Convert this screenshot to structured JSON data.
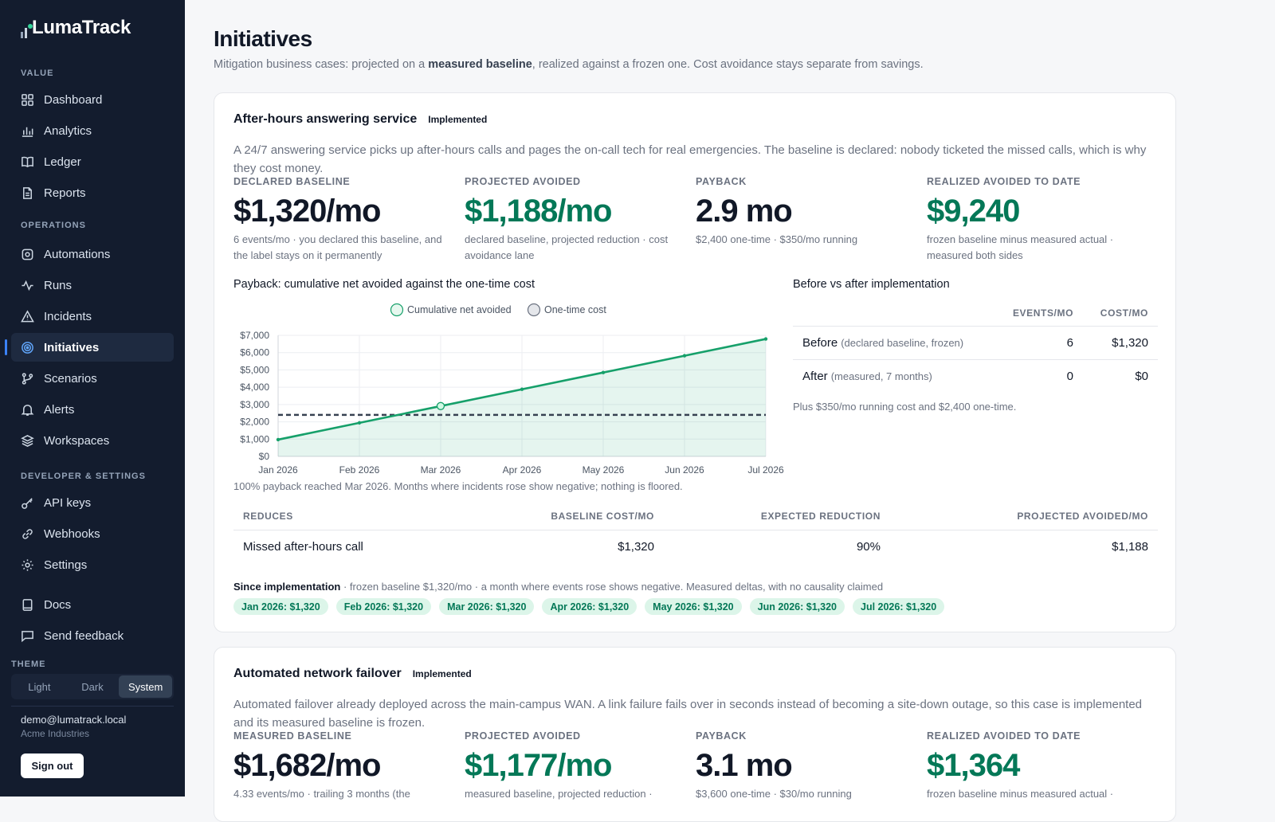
{
  "app": {
    "name": "LumaTrack"
  },
  "sidebar": {
    "sections": {
      "value": "VALUE",
      "operations": "OPERATIONS",
      "developer": "DEVELOPER & SETTINGS"
    },
    "items": {
      "dashboard": "Dashboard",
      "analytics": "Analytics",
      "ledger": "Ledger",
      "reports": "Reports",
      "automations": "Automations",
      "runs": "Runs",
      "incidents": "Incidents",
      "initiatives": "Initiatives",
      "scenarios": "Scenarios",
      "alerts": "Alerts",
      "workspaces": "Workspaces",
      "api_keys": "API keys",
      "webhooks": "Webhooks",
      "settings": "Settings",
      "docs": "Docs",
      "feedback": "Send feedback"
    },
    "active": "initiatives",
    "theme": {
      "label": "THEME",
      "options": [
        "Light",
        "Dark",
        "System"
      ],
      "selected": "System"
    },
    "user": {
      "email": "demo@lumatrack.local",
      "org": "Acme Industries"
    },
    "signout": "Sign out"
  },
  "page": {
    "title": "Initiatives",
    "subtitle_pre": "Mitigation business cases: projected on a ",
    "subtitle_bold": "measured baseline",
    "subtitle_post": ", realized against a frozen one. Cost avoidance stays separate from savings."
  },
  "card1": {
    "title": "After-hours answering service",
    "status": "Implemented",
    "description": "A 24/7 answering service picks up after-hours calls and pages the on-call tech for real emergencies. The baseline is declared: nobody ticketed the missed calls, which is why they cost money.",
    "kpis": [
      {
        "label": "DECLARED BASELINE",
        "value": "$1,320/mo",
        "note": "6 events/mo · you declared this baseline, and the label stays on it permanently"
      },
      {
        "label": "PROJECTED AVOIDED",
        "value": "$1,188/mo",
        "note": "declared baseline, projected reduction · cost avoidance lane"
      },
      {
        "label": "PAYBACK",
        "value": "2.9 mo",
        "note": "$2,400 one-time · $350/mo running"
      },
      {
        "label": "REALIZED AVOIDED TO DATE",
        "value": "$9,240",
        "note": "frozen baseline minus measured actual · measured both sides"
      }
    ],
    "chart_title": "Payback: cumulative net avoided against the one-time cost",
    "chart_footnote": "100% payback reached Mar 2026. Months where incidents rose show negative; nothing is floored.",
    "comparison": {
      "title": "Before vs after implementation",
      "headers": [
        "EVENTS/MO",
        "COST/MO"
      ],
      "rows": [
        {
          "label": "Before",
          "sub": "(declared baseline, frozen)",
          "events": "6",
          "cost": "$1,320"
        },
        {
          "label": "After",
          "sub": "(measured, 7 months)",
          "events": "0",
          "cost": "$0"
        }
      ],
      "note": "Plus $350/mo running cost and $2,400 one-time."
    },
    "reductions": {
      "headers": [
        "REDUCES",
        "BASELINE COST/MO",
        "EXPECTED REDUCTION",
        "PROJECTED AVOIDED/MO"
      ],
      "rows": [
        {
          "reduces": "Missed after-hours call",
          "baseline": "$1,320",
          "reduction": "90%",
          "avoided": "$1,188"
        }
      ]
    },
    "since": {
      "label": "Since implementation",
      "text": " · frozen baseline $1,320/mo · a month where events rose shows negative. Measured deltas, with no causality claimed",
      "chips": [
        "Jan 2026: $1,320",
        "Feb 2026: $1,320",
        "Mar 2026: $1,320",
        "Apr 2026: $1,320",
        "May 2026: $1,320",
        "Jun 2026: $1,320",
        "Jul 2026: $1,320"
      ]
    }
  },
  "card2": {
    "title": "Automated network failover",
    "status": "Implemented",
    "description": "Automated failover already deployed across the main-campus WAN. A link failure fails over in seconds instead of becoming a site-down outage, so this case is implemented and its measured baseline is frozen.",
    "kpis": [
      {
        "label": "MEASURED BASELINE",
        "value": "$1,682/mo",
        "note": "4.33 events/mo · trailing 3 months (the"
      },
      {
        "label": "PROJECTED AVOIDED",
        "value": "$1,177/mo",
        "note": "measured baseline, projected reduction ·"
      },
      {
        "label": "PAYBACK",
        "value": "3.1 mo",
        "note": "$3,600 one-time · $30/mo running"
      },
      {
        "label": "REALIZED AVOIDED TO DATE",
        "value": "$1,364",
        "note": "frozen baseline minus measured actual ·"
      }
    ]
  },
  "chart_data": {
    "type": "line",
    "title": "Payback: cumulative net avoided against the one-time cost",
    "x": [
      "Jan 2026",
      "Feb 2026",
      "Mar 2026",
      "Apr 2026",
      "May 2026",
      "Jun 2026",
      "Jul 2026"
    ],
    "series": [
      {
        "name": "Cumulative net avoided",
        "values": [
          970,
          1940,
          2910,
          3880,
          4850,
          5820,
          6790
        ],
        "color": "#16a06a"
      },
      {
        "name": "One-time cost",
        "values": [
          2400,
          2400,
          2400,
          2400,
          2400,
          2400,
          2400
        ],
        "color": "#374151",
        "style": "dashed"
      }
    ],
    "yticks": [
      "$0",
      "$1,000",
      "$2,000",
      "$3,000",
      "$4,000",
      "$5,000",
      "$6,000",
      "$7,000"
    ],
    "ylim": [
      0,
      7000
    ],
    "payback_marker": "Mar 2026",
    "grid": true,
    "legend": "top"
  }
}
